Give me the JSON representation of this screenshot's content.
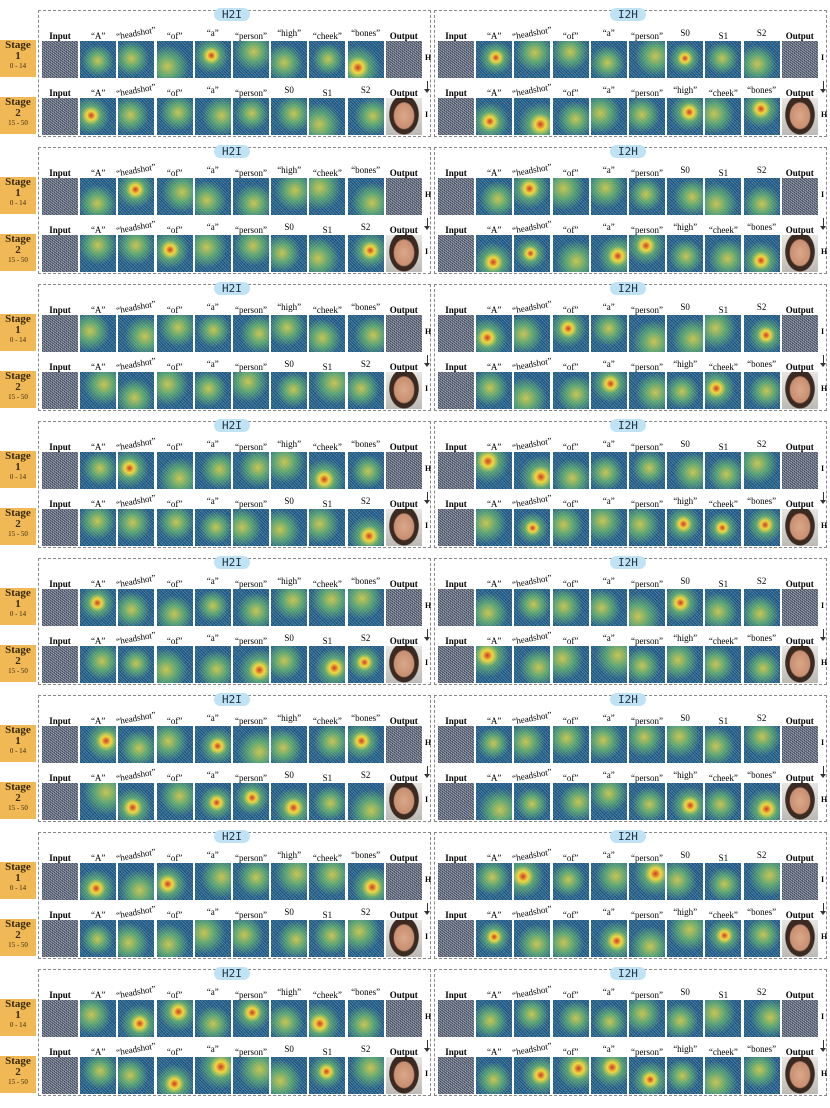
{
  "stage_labels": [
    {
      "word": "Stage",
      "number": "1",
      "range": "0 - 14"
    },
    {
      "word": "Stage",
      "number": "2",
      "range": "15 - 50"
    }
  ],
  "columns": {
    "prompt": [
      "Input",
      "“A”",
      "“headshot”",
      "“of”",
      "“a”",
      "“person”",
      "“high”",
      "“cheek”",
      "“bones”",
      "Output"
    ],
    "tokens": [
      "Input",
      "“A”",
      "“headshot”",
      "“of”",
      "“a”",
      "“person”",
      "S0",
      "S1",
      "S2",
      "Output"
    ]
  },
  "rows": [
    {
      "panels": [
        {
          "tag": "H2I",
          "sides": [
            "H",
            "I"
          ]
        },
        {
          "tag": "I2H",
          "sides": [
            "I",
            "H"
          ]
        }
      ]
    },
    {
      "panels": [
        {
          "tag": "H2I",
          "sides": [
            "H",
            "I"
          ]
        },
        {
          "tag": "I2H",
          "sides": [
            "I",
            "H"
          ]
        }
      ]
    },
    {
      "panels": [
        {
          "tag": "H2I",
          "sides": [
            "H",
            "I"
          ]
        },
        {
          "tag": "I2H",
          "sides": [
            "I",
            "H"
          ]
        }
      ]
    },
    {
      "panels": [
        {
          "tag": "H2I",
          "sides": [
            "H",
            "I"
          ]
        },
        {
          "tag": "I2H",
          "sides": [
            "I",
            "H"
          ]
        }
      ]
    },
    {
      "panels": [
        {
          "tag": "H2I",
          "sides": [
            "H",
            "I"
          ]
        },
        {
          "tag": "I2H",
          "sides": [
            "I",
            "H"
          ]
        }
      ]
    },
    {
      "panels": [
        {
          "tag": "H2I",
          "sides": [
            "H",
            "I"
          ]
        },
        {
          "tag": "I2H",
          "sides": [
            "I",
            "H"
          ]
        }
      ]
    },
    {
      "panels": [
        {
          "tag": "H2I",
          "sides": [
            "H",
            "I"
          ]
        },
        {
          "tag": "I2H",
          "sides": [
            "I",
            "H"
          ]
        }
      ]
    },
    {
      "panels": [
        {
          "tag": "H2I",
          "sides": [
            "H",
            "I"
          ]
        },
        {
          "tag": "I2H",
          "sides": [
            "I",
            "H"
          ]
        }
      ]
    }
  ]
}
